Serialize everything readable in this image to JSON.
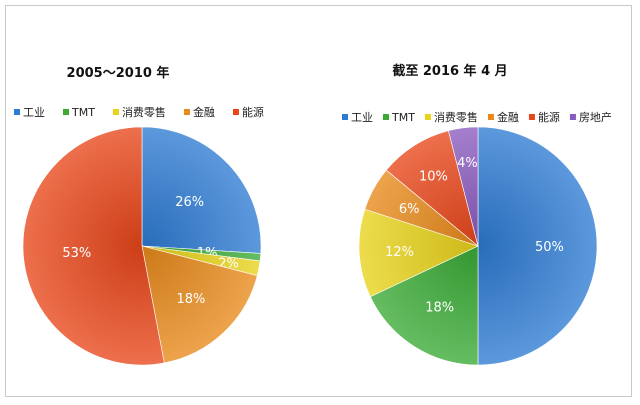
{
  "chart_data": [
    {
      "type": "pie",
      "title": "2005～2010 年",
      "legend_position": "top",
      "slices": [
        {
          "label": "工业",
          "value": 26,
          "text": "26%",
          "color": "#2e7bd2"
        },
        {
          "label": "TMT",
          "value": 1,
          "text": "1%",
          "color": "#3aaa35"
        },
        {
          "label": "消费零售",
          "value": 2,
          "text": "2%",
          "color": "#e8d21a"
        },
        {
          "label": "金融",
          "value": 18,
          "text": "18%",
          "color": "#e8891a"
        },
        {
          "label": "能源",
          "value": 53,
          "text": "53%",
          "color": "#e8461a"
        }
      ]
    },
    {
      "type": "pie",
      "title": "截至 2016 年 4 月",
      "legend_position": "top",
      "slices": [
        {
          "label": "工业",
          "value": 50,
          "text": "50%",
          "color": "#2e7bd2"
        },
        {
          "label": "TMT",
          "value": 18,
          "text": "18%",
          "color": "#3aaa35"
        },
        {
          "label": "消费零售",
          "value": 12,
          "text": "12%",
          "color": "#e8d21a"
        },
        {
          "label": "金融",
          "value": 6,
          "text": "6%",
          "color": "#e8891a"
        },
        {
          "label": "能源",
          "value": 10,
          "text": "10%",
          "color": "#e8461a"
        },
        {
          "label": "房地产",
          "value": 4,
          "text": "4%",
          "color": "#8a5bbf"
        }
      ]
    }
  ]
}
